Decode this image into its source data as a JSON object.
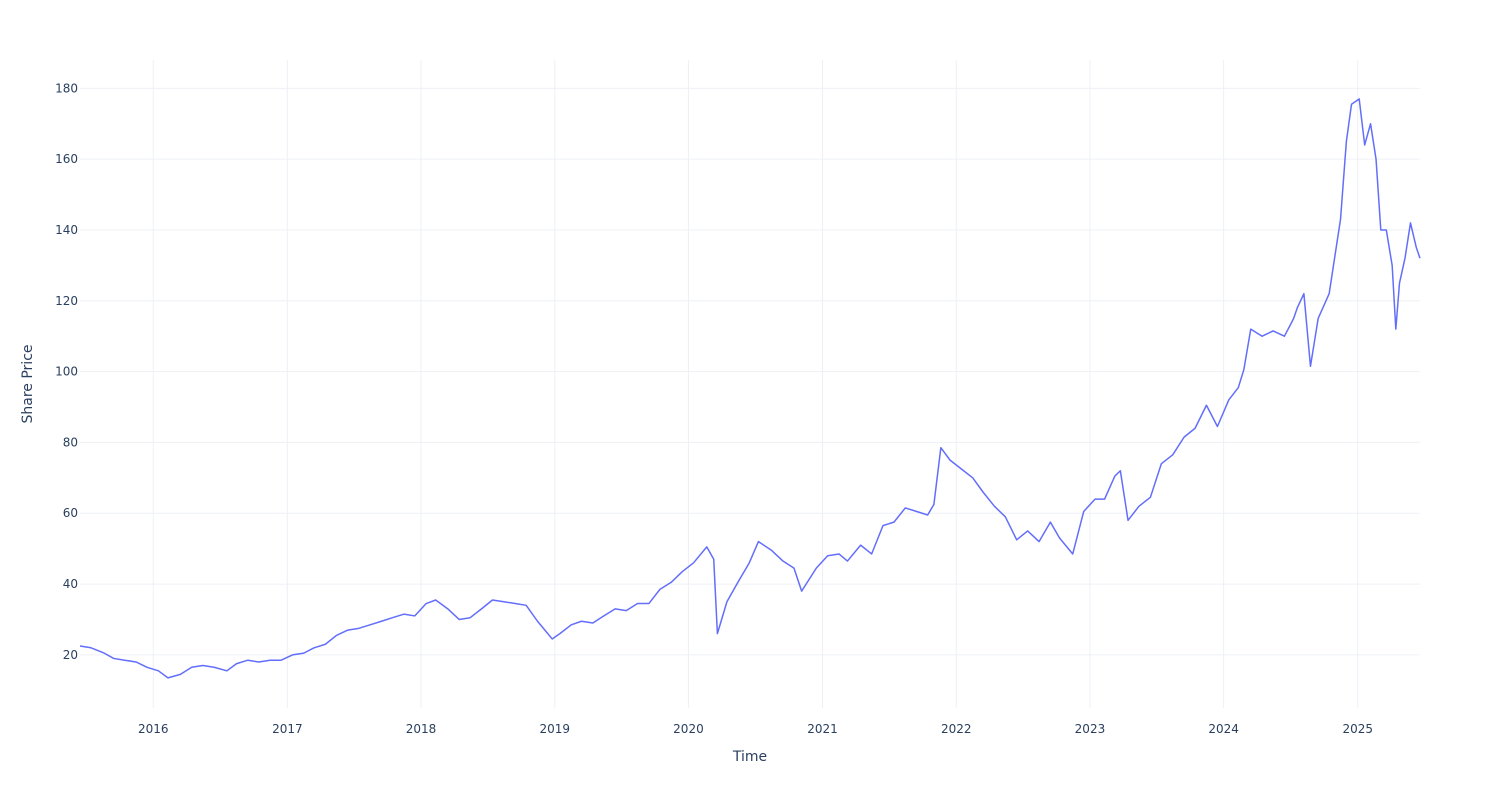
{
  "chart_data": {
    "type": "line",
    "title": "",
    "xlabel": "Time",
    "ylabel": "Share Price",
    "x_range": [
      "2015-06-15",
      "2025-06-20"
    ],
    "ylim": [
      5,
      188
    ],
    "x_ticks": [
      "2016",
      "2017",
      "2018",
      "2019",
      "2020",
      "2021",
      "2022",
      "2023",
      "2024",
      "2025"
    ],
    "y_ticks": [
      20,
      40,
      60,
      80,
      100,
      120,
      140,
      160,
      180
    ],
    "grid": true,
    "colors": {
      "series": "#636efa",
      "grid": "#eef0f5",
      "text": "#2a3f5f"
    },
    "series": [
      {
        "x": [
          "2015-06-15",
          "2015-07-15",
          "2015-08-20",
          "2015-09-15",
          "2015-10-15",
          "2015-11-15",
          "2015-12-15",
          "2016-01-15",
          "2016-02-10",
          "2016-03-15",
          "2016-04-15",
          "2016-05-15",
          "2016-06-15",
          "2016-07-20",
          "2016-08-15",
          "2016-09-15",
          "2016-10-15",
          "2016-11-15",
          "2016-12-15",
          "2017-01-15",
          "2017-02-15",
          "2017-03-15",
          "2017-04-15",
          "2017-05-15",
          "2017-06-15",
          "2017-07-15",
          "2017-08-15",
          "2017-09-15",
          "2017-10-15",
          "2017-11-15",
          "2017-12-15",
          "2018-01-15",
          "2018-02-10",
          "2018-03-15",
          "2018-04-15",
          "2018-05-15",
          "2018-06-15",
          "2018-07-15",
          "2018-08-15",
          "2018-09-15",
          "2018-10-15",
          "2018-11-15",
          "2018-12-25",
          "2019-01-15",
          "2019-02-15",
          "2019-03-15",
          "2019-04-15",
          "2019-05-15",
          "2019-06-15",
          "2019-07-15",
          "2019-08-15",
          "2019-09-15",
          "2019-10-15",
          "2019-11-15",
          "2019-12-15",
          "2020-01-15",
          "2020-02-20",
          "2020-03-10",
          "2020-03-20",
          "2020-04-15",
          "2020-05-15",
          "2020-06-15",
          "2020-07-10",
          "2020-08-15",
          "2020-09-15",
          "2020-10-15",
          "2020-11-05",
          "2020-12-15",
          "2021-01-15",
          "2021-02-15",
          "2021-03-10",
          "2021-04-15",
          "2021-05-15",
          "2021-06-15",
          "2021-07-15",
          "2021-08-15",
          "2021-09-15",
          "2021-10-15",
          "2021-11-01",
          "2021-11-20",
          "2021-12-15",
          "2022-01-15",
          "2022-02-15",
          "2022-03-15",
          "2022-04-15",
          "2022-05-15",
          "2022-06-15",
          "2022-07-15",
          "2022-08-15",
          "2022-09-15",
          "2022-10-10",
          "2022-11-15",
          "2022-12-15",
          "2023-01-15",
          "2023-02-10",
          "2023-03-10",
          "2023-03-25",
          "2023-04-15",
          "2023-05-15",
          "2023-06-15",
          "2023-07-15",
          "2023-08-15",
          "2023-09-15",
          "2023-10-15",
          "2023-11-15",
          "2023-12-15",
          "2024-01-15",
          "2024-02-10",
          "2024-02-25",
          "2024-03-15",
          "2024-04-15",
          "2024-05-15",
          "2024-06-15",
          "2024-07-10",
          "2024-07-20",
          "2024-08-07",
          "2024-08-25",
          "2024-09-15",
          "2024-10-15",
          "2024-11-15",
          "2024-12-01",
          "2024-12-15",
          "2025-01-05",
          "2025-01-20",
          "2025-02-05",
          "2025-02-20",
          "2025-03-05",
          "2025-03-20",
          "2025-04-05",
          "2025-04-15",
          "2025-04-25",
          "2025-05-10",
          "2025-05-25",
          "2025-06-10",
          "2025-06-20"
        ],
        "y": [
          22.5,
          22.0,
          20.5,
          19.0,
          18.5,
          18.0,
          16.5,
          15.5,
          13.5,
          14.5,
          16.5,
          17.0,
          16.5,
          15.5,
          17.5,
          18.5,
          18.0,
          18.5,
          18.5,
          20.0,
          20.5,
          22.0,
          23.0,
          25.5,
          27.0,
          27.5,
          28.5,
          29.5,
          30.5,
          31.5,
          31.0,
          34.5,
          35.5,
          33.0,
          30.0,
          30.5,
          33.0,
          35.5,
          35.0,
          34.5,
          34.0,
          29.5,
          24.5,
          26.0,
          28.5,
          29.5,
          29.0,
          31.0,
          33.0,
          32.5,
          34.5,
          34.5,
          38.5,
          40.5,
          43.5,
          46.0,
          50.5,
          47.0,
          26.0,
          35.0,
          40.5,
          46.0,
          52.0,
          49.5,
          46.5,
          44.5,
          38.0,
          44.5,
          48.0,
          48.5,
          46.5,
          51.0,
          48.5,
          56.5,
          57.5,
          61.5,
          60.5,
          59.5,
          62.5,
          78.5,
          75.0,
          72.5,
          70.0,
          66.0,
          62.0,
          59.0,
          52.5,
          55.0,
          52.0,
          57.5,
          53.0,
          48.5,
          60.5,
          64.0,
          64.0,
          70.5,
          72.0,
          58.0,
          62.0,
          64.5,
          74.0,
          76.5,
          81.5,
          84.0,
          90.5,
          84.5,
          92.0,
          95.5,
          100.5,
          112.0,
          110.0,
          111.5,
          110.0,
          115.0,
          118.0,
          122.0,
          101.5,
          115.0,
          122.0,
          143.0,
          165.0,
          175.5,
          177.0,
          164.0,
          170.0,
          160.0,
          140.0,
          140.0,
          130.0,
          112.0,
          125.0,
          132.0,
          142.0,
          135.0,
          132.0
        ]
      }
    ]
  }
}
